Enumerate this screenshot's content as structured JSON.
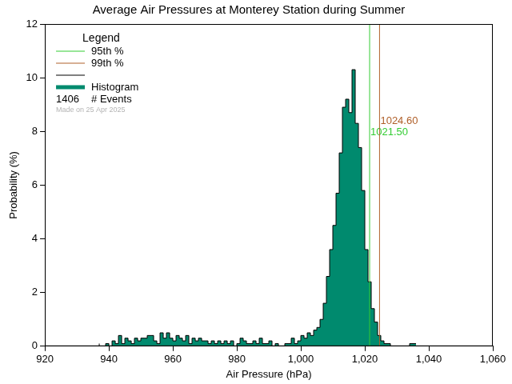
{
  "chart_data": {
    "type": "histogram",
    "title": "Average Air Pressures at Monterey Station during Summer",
    "x_label": "Air Pressure (hPa)",
    "y_label": "Probability (%)",
    "bins": [
      937,
      938,
      939,
      940,
      941,
      942,
      943,
      944,
      945,
      946,
      947,
      948,
      949,
      950,
      951,
      952,
      953,
      954,
      955,
      956,
      957,
      958,
      959,
      960,
      961,
      962,
      963,
      964,
      965,
      966,
      967,
      968,
      969,
      970,
      971,
      972,
      973,
      974,
      975,
      976,
      977,
      978,
      979,
      980,
      981,
      982,
      983,
      984,
      985,
      986,
      987,
      988,
      989,
      990,
      991,
      992,
      993,
      994,
      995,
      996,
      997,
      998,
      999,
      1000,
      1001,
      1002,
      1003,
      1004,
      1005,
      1006,
      1007,
      1008,
      1009,
      1010,
      1011,
      1012,
      1013,
      1014,
      1015,
      1016,
      1017,
      1018,
      1019,
      1020,
      1021,
      1022,
      1023,
      1024,
      1025,
      1026,
      1027,
      1028,
      1029,
      1030,
      1031,
      1032,
      1033,
      1034,
      1035,
      1036
    ],
    "values": [
      0.1,
      0,
      0,
      0.1,
      0,
      0.2,
      0.1,
      0.4,
      0.1,
      0.3,
      0.2,
      0.1,
      0.3,
      0.2,
      0.3,
      0.3,
      0.4,
      0.4,
      0.2,
      0.1,
      0.5,
      0.3,
      0.5,
      0.3,
      0.2,
      0.4,
      0.3,
      0.2,
      0.4,
      0.1,
      0.3,
      0.2,
      0.3,
      0.2,
      0.2,
      0.1,
      0.2,
      0.1,
      0.2,
      0.1,
      0.2,
      0.1,
      0.2,
      0,
      0.1,
      0.3,
      0.2,
      0.1,
      0.1,
      0.2,
      0.1,
      0.3,
      0.1,
      0.1,
      0.2,
      0,
      0.1,
      0,
      0,
      0.1,
      0.1,
      0.3,
      0.1,
      0.2,
      0.4,
      0.3,
      0.5,
      0.4,
      0.6,
      0.7,
      1.0,
      1.6,
      2.6,
      3.6,
      4.5,
      5.7,
      7.2,
      8.9,
      9.2,
      8.7,
      10.3,
      8.3,
      7.4,
      5.8,
      3.6,
      2.4,
      1.4,
      0.9,
      0.4,
      0.2,
      0.1,
      0.1,
      0,
      0,
      0,
      0,
      0,
      0,
      0.1
    ],
    "name": "Histogram",
    "color": "#008a6e",
    "reference_lines": [
      {
        "name": "95th %",
        "value": 1021.5,
        "label": "1021.50",
        "color": "#33cc33"
      },
      {
        "name": "99th %",
        "value": 1024.6,
        "label": "1024.60",
        "color": "#b0602a"
      }
    ],
    "events": {
      "count": 1406,
      "label": "# Events"
    },
    "note": "Made on 25 Apr 2025",
    "legend": "upper left",
    "legend_title": "Legend",
    "xlim": [
      920,
      1060
    ],
    "xticks": [
      920,
      940,
      960,
      980,
      1000,
      1020,
      1040,
      1060
    ],
    "ylim": [
      0,
      12
    ],
    "yticks": [
      0,
      2,
      4,
      6,
      8,
      10,
      12
    ],
    "grid": false
  }
}
